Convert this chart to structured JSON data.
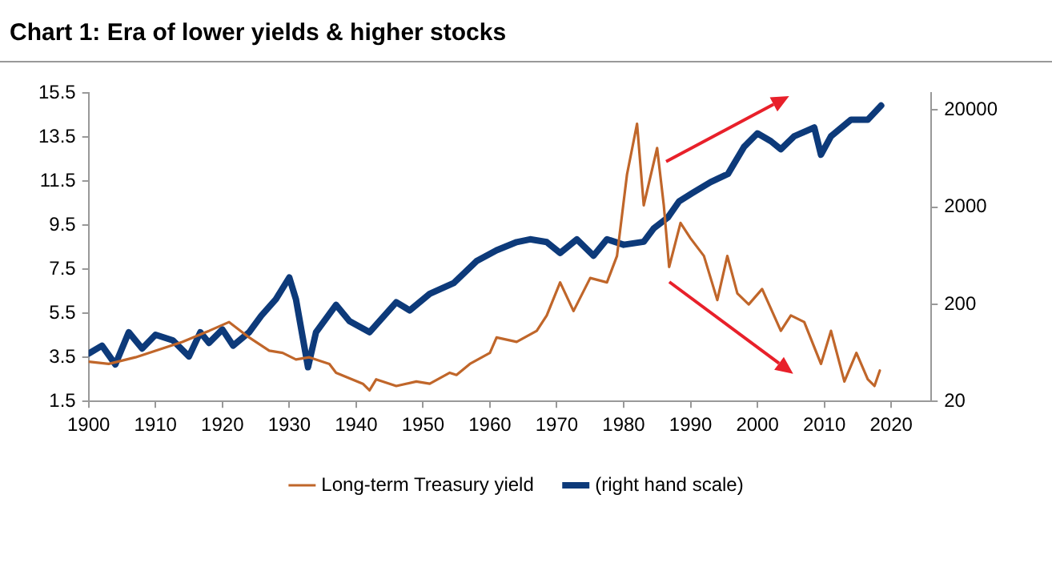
{
  "chart_data": {
    "type": "line",
    "title": "Chart 1: Era of lower yields & higher stocks",
    "xlim": [
      1900,
      2026
    ],
    "xticks": [
      1900,
      1910,
      1920,
      1930,
      1940,
      1950,
      1960,
      1970,
      1980,
      1990,
      2000,
      2010,
      2020
    ],
    "ylim": [
      1.5,
      15.5
    ],
    "yticks": [
      1.5,
      3.5,
      5.5,
      7.5,
      9.5,
      11.5,
      13.5,
      15.5
    ],
    "y2lim": [
      20,
      30000
    ],
    "y2ticks": [
      20,
      200,
      2000,
      20000
    ],
    "log": "y2",
    "grid": false,
    "legend": "bottom",
    "marker": "none",
    "line_style": "solid",
    "series": [
      {
        "name": "Long-term Treasury yield",
        "color": "#c0662a",
        "x": [
          1900,
          1903,
          1907,
          1910,
          1914,
          1918,
          1921,
          1924,
          1927,
          1929,
          1931,
          1933,
          1936,
          1937,
          1941,
          1942,
          1943,
          1946,
          1949,
          1951,
          1954,
          1955,
          1957,
          1960,
          1961,
          1964,
          1967,
          1968.5,
          1970.5,
          1972.5,
          1975,
          1977.5,
          1979,
          1980.5,
          1982,
          1983,
          1985,
          1986,
          1986.8,
          1988.5,
          1990,
          1992,
          1994,
          1995.5,
          1997,
          1998.7,
          2000.7,
          2003.5,
          2005,
          2007,
          2009.5,
          2011,
          2013,
          2014.8,
          2016.5,
          2017.5,
          2018.3
        ],
        "values": [
          3.3,
          3.2,
          3.5,
          3.8,
          4.2,
          4.7,
          5.1,
          4.4,
          3.8,
          3.7,
          3.4,
          3.5,
          3.2,
          2.8,
          2.3,
          2.0,
          2.5,
          2.2,
          2.4,
          2.3,
          2.8,
          2.7,
          3.2,
          3.7,
          4.4,
          4.2,
          4.7,
          5.4,
          6.9,
          5.6,
          7.1,
          6.9,
          8.1,
          11.8,
          14.1,
          10.4,
          13.0,
          10.4,
          7.6,
          9.6,
          8.9,
          8.1,
          6.1,
          8.1,
          6.4,
          5.9,
          6.6,
          4.7,
          5.4,
          5.1,
          3.2,
          4.7,
          2.4,
          3.7,
          2.5,
          2.2,
          2.9
        ]
      },
      {
        "name": "(right hand scale)",
        "color": "#0d3a7a",
        "axis": "y2",
        "x": [
          1900,
          1902,
          1904,
          1906,
          1908,
          1910,
          1912.6,
          1915,
          1916.7,
          1918,
          1920,
          1921.6,
          1924,
          1925.8,
          1928,
          1930,
          1931,
          1932.8,
          1934,
          1937,
          1939,
          1942,
          1946,
          1948,
          1951,
          1954.6,
          1958,
          1961,
          1964,
          1966,
          1968.5,
          1970.5,
          1973,
          1975.5,
          1977.5,
          1980,
          1983,
          1984.5,
          1986.6,
          1988.3,
          1990.3,
          1993,
          1995.6,
          1998,
          2000,
          2002,
          2003.5,
          2005.5,
          2008.5,
          2009.5,
          2011,
          2014,
          2016.5,
          2018.5
        ],
        "values": [
          62,
          75,
          48,
          103,
          70,
          97,
          85,
          58,
          103,
          80,
          110,
          75,
          103,
          152,
          225,
          377,
          225,
          45,
          103,
          197,
          134,
          103,
          210,
          173,
          256,
          331,
          556,
          720,
          873,
          933,
          873,
          675,
          933,
          632,
          933,
          819,
          880,
          1208,
          1564,
          2300,
          2800,
          3625,
          4400,
          8350,
          11500,
          9560,
          7880,
          10750,
          13200,
          6930,
          10750,
          15900,
          15900,
          22200
        ]
      }
    ]
  }
}
